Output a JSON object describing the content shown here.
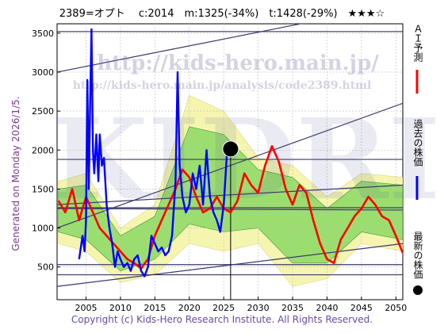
{
  "title": "2389=オプト　 c:2014　m:1325(-34%)　t:1428(-29%)　★★★☆",
  "generated": "Generated on Monday 2026/1/5.",
  "footer": "Copyright (c) Kids-Hero Research Institute. All Rights Reserved.",
  "watermarks": {
    "url": "http://kids-hero.main.jp/",
    "analysis_url": "http://kids-hero.main.jp/analysis/code2389.html",
    "big": "KIDRI"
  },
  "legend": {
    "ai_forecast": "ＡＩ予測",
    "past_price": "過去の株価",
    "latest_price": "最新の株価"
  },
  "colors": {
    "forecast": "#ff0000",
    "past": "#0000ff",
    "latest": "#000000",
    "band_green": "#7cd65a",
    "band_yellow": "#f5f5b0",
    "channel": "#3a3a6a"
  },
  "chart_data": {
    "type": "line",
    "xlim": [
      2000.8,
      2051.0
    ],
    "ylim": [
      80,
      3620
    ],
    "x_ticks": [
      2005,
      2010,
      2015,
      2020,
      2025,
      2030,
      2035,
      2040,
      2045,
      2050
    ],
    "y_ticks": [
      500,
      1000,
      1500,
      2000,
      2500,
      3000,
      3500
    ],
    "grid": true,
    "latest_point": {
      "x": 2026.0,
      "y": 2014
    },
    "past_price": [
      [
        2004.0,
        600
      ],
      [
        2004.5,
        900
      ],
      [
        2004.8,
        700
      ],
      [
        2005.0,
        1100
      ],
      [
        2005.2,
        2900
      ],
      [
        2005.4,
        1500
      ],
      [
        2005.6,
        2600
      ],
      [
        2005.8,
        3550
      ],
      [
        2006.0,
        2000
      ],
      [
        2006.2,
        1700
      ],
      [
        2006.5,
        2200
      ],
      [
        2006.8,
        1600
      ],
      [
        2007.0,
        2200
      ],
      [
        2007.3,
        1800
      ],
      [
        2007.6,
        1900
      ],
      [
        2008.0,
        1300
      ],
      [
        2008.4,
        1000
      ],
      [
        2008.8,
        800
      ],
      [
        2009.2,
        500
      ],
      [
        2009.6,
        700
      ],
      [
        2010.0,
        600
      ],
      [
        2010.5,
        500
      ],
      [
        2011.0,
        550
      ],
      [
        2011.5,
        450
      ],
      [
        2012.0,
        600
      ],
      [
        2012.5,
        650
      ],
      [
        2013.0,
        450
      ],
      [
        2013.5,
        380
      ],
      [
        2014.0,
        500
      ],
      [
        2014.5,
        900
      ],
      [
        2015.0,
        800
      ],
      [
        2015.5,
        700
      ],
      [
        2016.0,
        750
      ],
      [
        2016.5,
        650
      ],
      [
        2017.0,
        700
      ],
      [
        2017.5,
        900
      ],
      [
        2018.0,
        1600
      ],
      [
        2018.3,
        3000
      ],
      [
        2018.6,
        1800
      ],
      [
        2019.0,
        1400
      ],
      [
        2019.5,
        1200
      ],
      [
        2020.0,
        1300
      ],
      [
        2020.5,
        1700
      ],
      [
        2021.0,
        1500
      ],
      [
        2021.5,
        1800
      ],
      [
        2022.0,
        1300
      ],
      [
        2022.5,
        2000
      ],
      [
        2023.0,
        1400
      ],
      [
        2023.5,
        1200
      ],
      [
        2024.0,
        1100
      ],
      [
        2024.5,
        950
      ],
      [
        2025.0,
        1300
      ],
      [
        2025.5,
        2000
      ],
      [
        2026.0,
        2014
      ]
    ],
    "ai_forecast": [
      [
        2001.0,
        1350
      ],
      [
        2002.0,
        1200
      ],
      [
        2003.0,
        1500
      ],
      [
        2004.0,
        1100
      ],
      [
        2005.0,
        1400
      ],
      [
        2006.0,
        1200
      ],
      [
        2007.0,
        1000
      ],
      [
        2008.0,
        900
      ],
      [
        2009.0,
        800
      ],
      [
        2010.0,
        700
      ],
      [
        2011.0,
        600
      ],
      [
        2012.0,
        550
      ],
      [
        2013.0,
        480
      ],
      [
        2014.0,
        600
      ],
      [
        2015.0,
        900
      ],
      [
        2016.0,
        1100
      ],
      [
        2017.0,
        1300
      ],
      [
        2018.0,
        1500
      ],
      [
        2019.0,
        1750
      ],
      [
        2020.0,
        1650
      ],
      [
        2021.0,
        1400
      ],
      [
        2022.0,
        1200
      ],
      [
        2023.0,
        1250
      ],
      [
        2024.0,
        1400
      ],
      [
        2025.0,
        1250
      ],
      [
        2026.0,
        1200
      ],
      [
        2027.0,
        1350
      ],
      [
        2028.0,
        1700
      ],
      [
        2029.0,
        1550
      ],
      [
        2030.0,
        1450
      ],
      [
        2031.0,
        1800
      ],
      [
        2032.0,
        2050
      ],
      [
        2033.0,
        1850
      ],
      [
        2034.0,
        1500
      ],
      [
        2035.0,
        1300
      ],
      [
        2036.0,
        1550
      ],
      [
        2037.0,
        1450
      ],
      [
        2038.0,
        1100
      ],
      [
        2039.0,
        800
      ],
      [
        2040.0,
        600
      ],
      [
        2041.0,
        550
      ],
      [
        2042.0,
        850
      ],
      [
        2043.0,
        1000
      ],
      [
        2044.0,
        1150
      ],
      [
        2045.0,
        1250
      ],
      [
        2046.0,
        1400
      ],
      [
        2047.0,
        1300
      ],
      [
        2048.0,
        1150
      ],
      [
        2049.0,
        1100
      ],
      [
        2050.0,
        900
      ],
      [
        2051.0,
        680
      ]
    ],
    "band_yellow": {
      "upper": [
        [
          2001,
          1600
        ],
        [
          2005,
          1700
        ],
        [
          2010,
          1000
        ],
        [
          2015,
          1300
        ],
        [
          2020,
          2700
        ],
        [
          2025,
          2500
        ],
        [
          2030,
          1900
        ],
        [
          2035,
          1800
        ],
        [
          2040,
          1400
        ],
        [
          2045,
          1700
        ],
        [
          2051,
          1650
        ]
      ],
      "lower": [
        [
          2001,
          800
        ],
        [
          2005,
          700
        ],
        [
          2010,
          300
        ],
        [
          2015,
          400
        ],
        [
          2020,
          800
        ],
        [
          2025,
          700
        ],
        [
          2030,
          800
        ],
        [
          2035,
          250
        ],
        [
          2040,
          350
        ],
        [
          2045,
          800
        ],
        [
          2051,
          700
        ]
      ]
    },
    "band_green": {
      "upper": [
        [
          2001,
          1500
        ],
        [
          2005,
          1550
        ],
        [
          2010,
          900
        ],
        [
          2015,
          1150
        ],
        [
          2020,
          2300
        ],
        [
          2025,
          2200
        ],
        [
          2030,
          1750
        ],
        [
          2035,
          1650
        ],
        [
          2040,
          1250
        ],
        [
          2045,
          1600
        ],
        [
          2051,
          1550
        ]
      ],
      "lower": [
        [
          2001,
          950
        ],
        [
          2005,
          850
        ],
        [
          2010,
          450
        ],
        [
          2015,
          600
        ],
        [
          2020,
          1050
        ],
        [
          2025,
          950
        ],
        [
          2030,
          1000
        ],
        [
          2035,
          550
        ],
        [
          2040,
          550
        ],
        [
          2045,
          950
        ],
        [
          2051,
          850
        ]
      ]
    },
    "channel_lines": [
      {
        "from": [
          2000.8,
          3520
        ],
        "to": [
          2051.0,
          3520
        ]
      },
      {
        "from": [
          2000.8,
          3000
        ],
        "to": [
          2051.0,
          3880
        ]
      },
      {
        "from": [
          2000.8,
          1880
        ],
        "to": [
          2051.0,
          1880
        ]
      },
      {
        "from": [
          2000.8,
          1260
        ],
        "to": [
          2051.0,
          1260
        ]
      },
      {
        "from": [
          2000.8,
          1000
        ],
        "to": [
          2051.0,
          2600
        ]
      },
      {
        "from": [
          2000.8,
          1250
        ],
        "to": [
          2051.0,
          1230
        ]
      },
      {
        "from": [
          2000.8,
          1300
        ],
        "to": [
          2051.0,
          1550
        ]
      },
      {
        "from": [
          2000.8,
          530
        ],
        "to": [
          2051.0,
          530
        ]
      },
      {
        "from": [
          2000.8,
          400
        ],
        "to": [
          2051.0,
          400
        ]
      },
      {
        "from": [
          2000.8,
          250
        ],
        "to": [
          2051.0,
          800
        ]
      }
    ]
  }
}
